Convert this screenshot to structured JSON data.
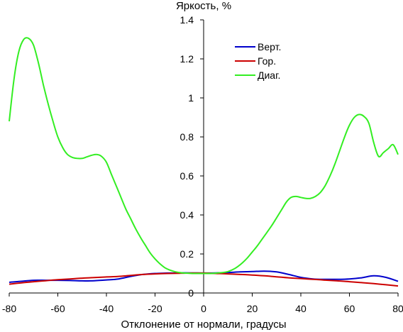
{
  "chart_data": {
    "type": "line",
    "title": "",
    "ylabel": "Яркость, %",
    "xlabel": "Отклонение от нормали, градусы",
    "xlim": [
      -80,
      80
    ],
    "ylim": [
      0,
      1.4
    ],
    "xticks": [
      -80,
      -60,
      -40,
      -20,
      0,
      20,
      40,
      60,
      80
    ],
    "xtick_labels": [
      "-80",
      "-60",
      "-40",
      "-20",
      "0",
      "20",
      "40",
      "60",
      "80"
    ],
    "yticks": [
      0,
      0.2,
      0.4,
      0.6,
      0.8,
      1,
      1.2,
      1.4
    ],
    "ytick_labels": [
      "0",
      "0.2",
      "0.4",
      "0.6",
      "0.8",
      "1",
      "1.2",
      "1.4"
    ],
    "grid": false,
    "legend_position": "top-center",
    "series": [
      {
        "name": "Верт.",
        "color": "#0000cc",
        "x": [
          -80,
          -75,
          -70,
          -65,
          -60,
          -55,
          -50,
          -45,
          -40,
          -35,
          -30,
          -25,
          -20,
          -15,
          -10,
          -5,
          0,
          5,
          10,
          15,
          20,
          25,
          30,
          35,
          40,
          45,
          50,
          55,
          60,
          65,
          70,
          75,
          80
        ],
        "y": [
          0.055,
          0.06,
          0.065,
          0.065,
          0.065,
          0.064,
          0.062,
          0.063,
          0.067,
          0.072,
          0.085,
          0.095,
          0.1,
          0.102,
          0.103,
          0.103,
          0.102,
          0.103,
          0.105,
          0.108,
          0.11,
          0.112,
          0.108,
          0.095,
          0.08,
          0.072,
          0.07,
          0.07,
          0.072,
          0.078,
          0.088,
          0.08,
          0.06
        ]
      },
      {
        "name": "Гор.",
        "color": "#cc0000",
        "x": [
          -80,
          -75,
          -70,
          -65,
          -60,
          -55,
          -50,
          -45,
          -40,
          -35,
          -30,
          -25,
          -20,
          -15,
          -10,
          -5,
          0,
          5,
          10,
          15,
          20,
          25,
          30,
          35,
          40,
          45,
          50,
          55,
          60,
          65,
          70,
          75,
          80
        ],
        "y": [
          0.045,
          0.052,
          0.058,
          0.063,
          0.068,
          0.072,
          0.076,
          0.079,
          0.082,
          0.085,
          0.09,
          0.095,
          0.098,
          0.1,
          0.101,
          0.102,
          0.102,
          0.1,
          0.098,
          0.095,
          0.092,
          0.088,
          0.083,
          0.078,
          0.074,
          0.07,
          0.066,
          0.062,
          0.058,
          0.053,
          0.048,
          0.042,
          0.036
        ]
      },
      {
        "name": "Диаг.",
        "color": "#33ee22",
        "x": [
          -80,
          -78,
          -76,
          -74,
          -72,
          -70,
          -68,
          -66,
          -64,
          -62,
          -60,
          -58,
          -56,
          -54,
          -52,
          -50,
          -48,
          -46,
          -44,
          -42,
          -40,
          -38,
          -36,
          -34,
          -32,
          -30,
          -28,
          -26,
          -24,
          -22,
          -20,
          -18,
          -16,
          -14,
          -12,
          -10,
          -8,
          -6,
          -4,
          -2,
          0,
          2,
          4,
          6,
          8,
          10,
          12,
          14,
          16,
          18,
          20,
          22,
          24,
          26,
          28,
          30,
          32,
          34,
          36,
          38,
          40,
          42,
          44,
          46,
          48,
          50,
          52,
          54,
          56,
          58,
          60,
          62,
          64,
          66,
          68,
          70,
          72,
          74,
          76,
          78,
          80
        ],
        "y": [
          0.88,
          1.1,
          1.24,
          1.3,
          1.305,
          1.27,
          1.18,
          1.07,
          0.97,
          0.88,
          0.8,
          0.745,
          0.71,
          0.695,
          0.69,
          0.69,
          0.698,
          0.706,
          0.71,
          0.7,
          0.67,
          0.61,
          0.55,
          0.49,
          0.43,
          0.38,
          0.33,
          0.285,
          0.245,
          0.205,
          0.175,
          0.15,
          0.13,
          0.118,
          0.11,
          0.105,
          0.102,
          0.101,
          0.1,
          0.1,
          0.1,
          0.1,
          0.101,
          0.103,
          0.105,
          0.11,
          0.12,
          0.135,
          0.155,
          0.18,
          0.21,
          0.24,
          0.275,
          0.31,
          0.345,
          0.385,
          0.425,
          0.465,
          0.49,
          0.495,
          0.49,
          0.485,
          0.485,
          0.495,
          0.515,
          0.55,
          0.6,
          0.66,
          0.73,
          0.8,
          0.86,
          0.9,
          0.915,
          0.905,
          0.87,
          0.77,
          0.7,
          0.72,
          0.74,
          0.76,
          0.71
        ]
      }
    ]
  }
}
